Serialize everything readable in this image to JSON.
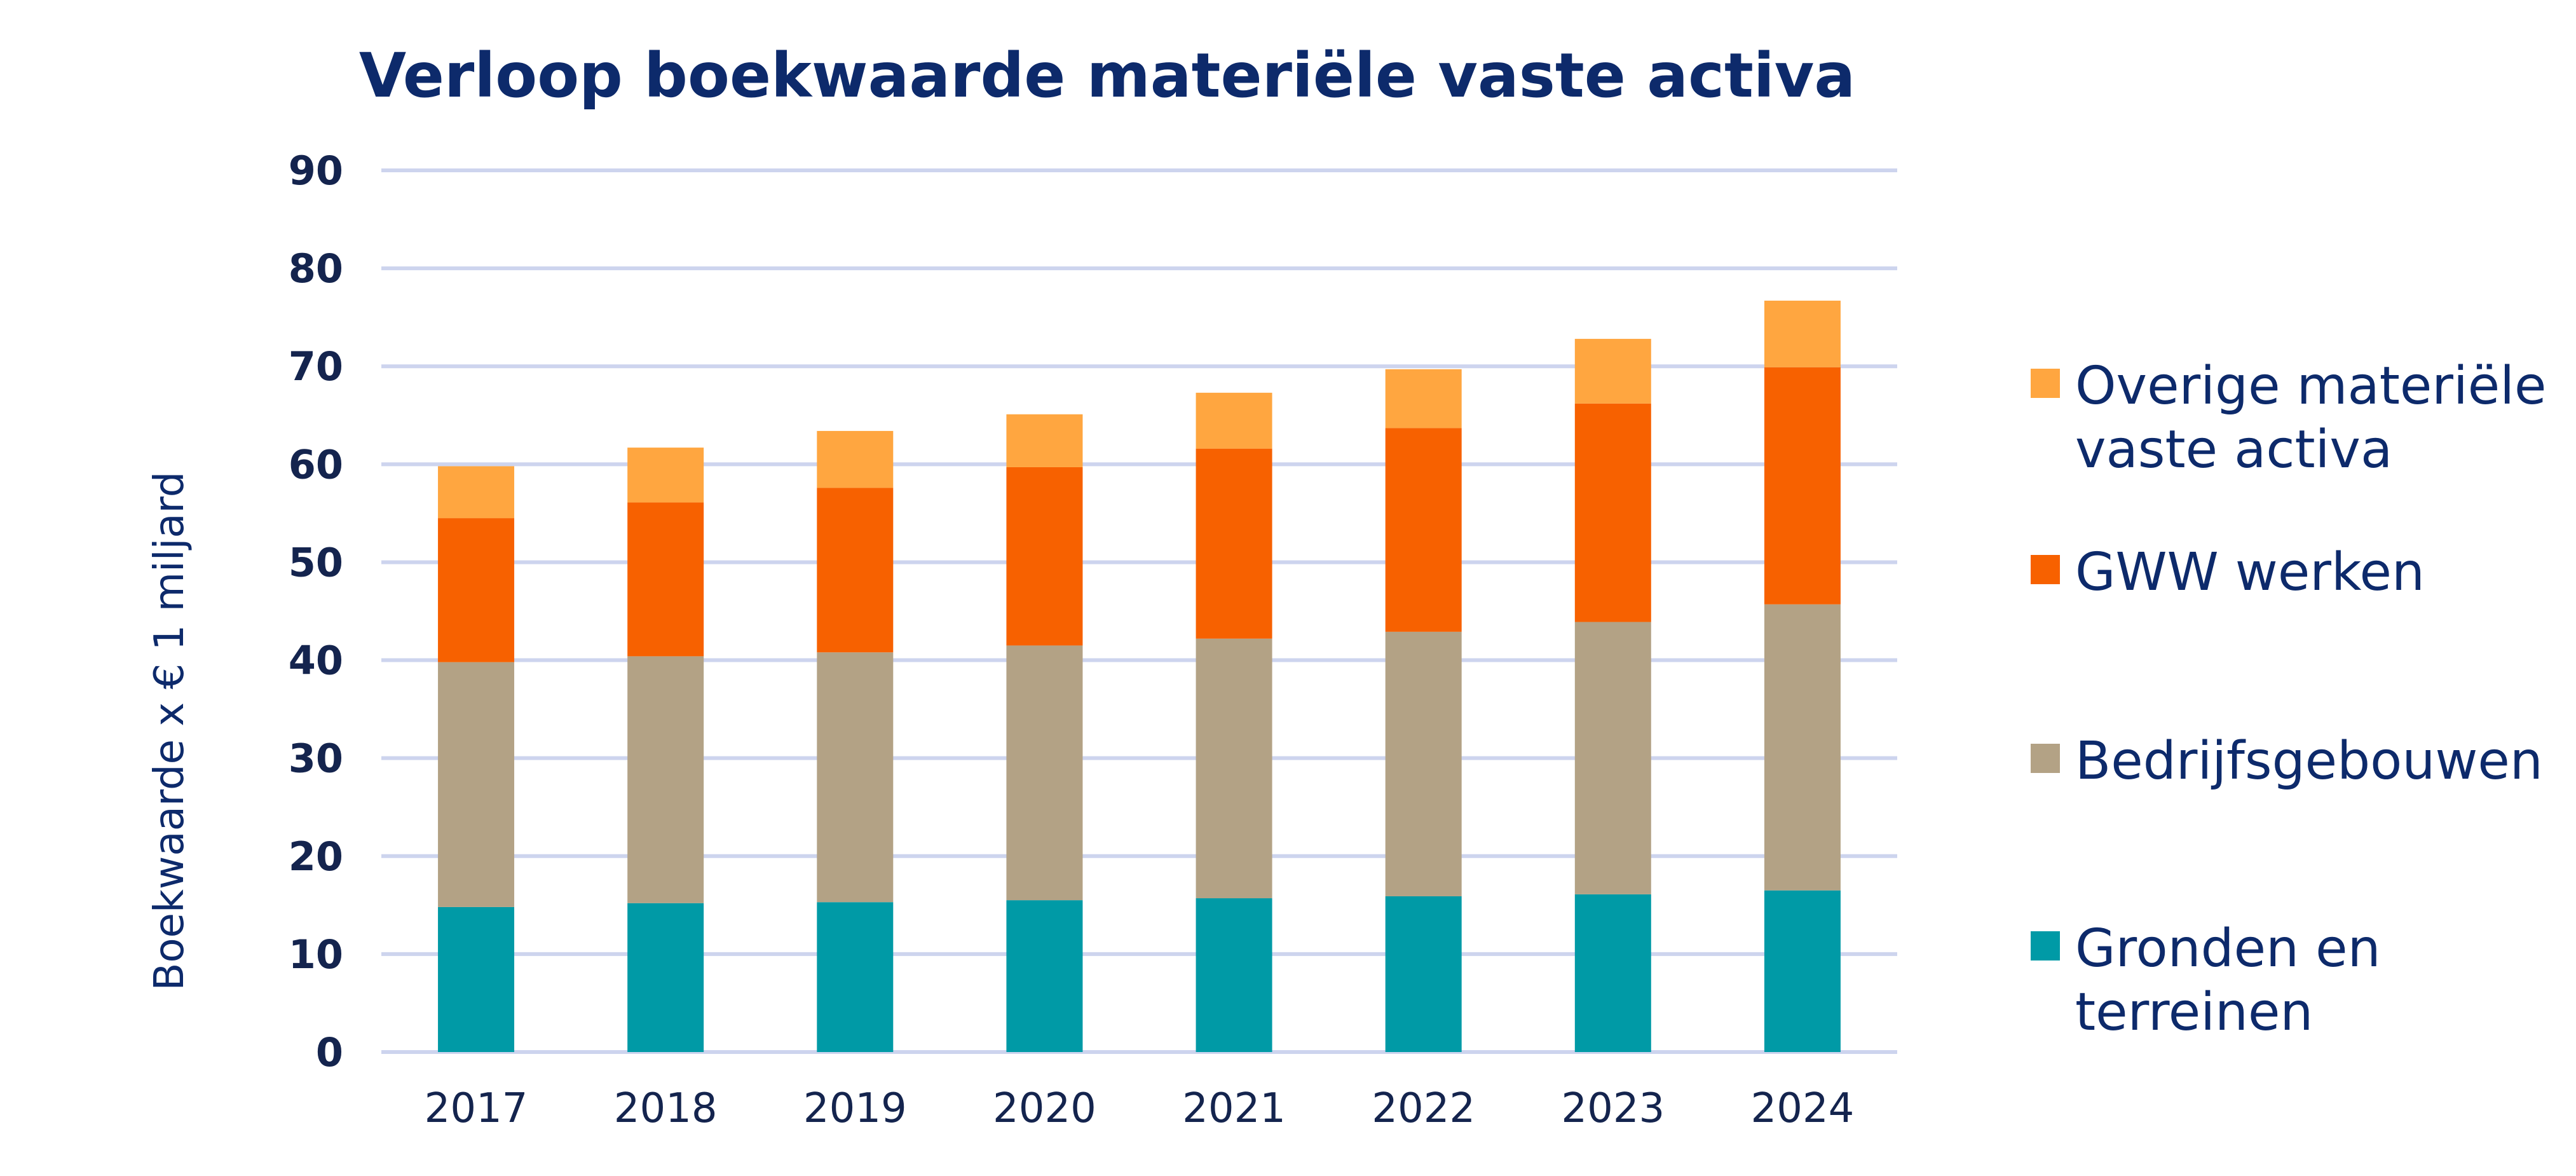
{
  "chart_data": {
    "type": "bar",
    "stacked": true,
    "title": "Verloop boekwaarde materiële vaste activa",
    "xlabel": "",
    "ylabel": "Boekwaarde x € 1 miljard",
    "ylim": [
      0,
      90
    ],
    "yticks": [
      0,
      10,
      20,
      30,
      40,
      50,
      60,
      70,
      80,
      90
    ],
    "grid": true,
    "legend_position": "right",
    "categories": [
      "2017",
      "2018",
      "2019",
      "2020",
      "2021",
      "2022",
      "2023",
      "2024"
    ],
    "series": [
      {
        "name": "Gronden en terreinen",
        "legend_lines": [
          "Gronden en",
          "terreinen"
        ],
        "color": "#009aa6",
        "values": [
          14.8,
          15.2,
          15.3,
          15.5,
          15.7,
          15.9,
          16.1,
          16.5
        ]
      },
      {
        "name": "Bedrijfsgebouwen",
        "legend_lines": [
          "Bedrijfsgebouwen"
        ],
        "color": "#b3a285",
        "values": [
          25.0,
          25.2,
          25.5,
          26.0,
          26.5,
          27.0,
          27.8,
          29.2
        ]
      },
      {
        "name": "GWW werken",
        "legend_lines": [
          "GWW werken"
        ],
        "color": "#f76100",
        "values": [
          14.7,
          15.7,
          16.8,
          18.2,
          19.4,
          20.8,
          22.3,
          24.2
        ]
      },
      {
        "name": "Overige materiële vaste activa",
        "legend_lines": [
          "Overige materiële",
          "vaste activa"
        ],
        "color": "#ffa640",
        "values": [
          5.3,
          5.6,
          5.8,
          5.4,
          5.7,
          6.0,
          6.6,
          6.8
        ]
      }
    ]
  }
}
